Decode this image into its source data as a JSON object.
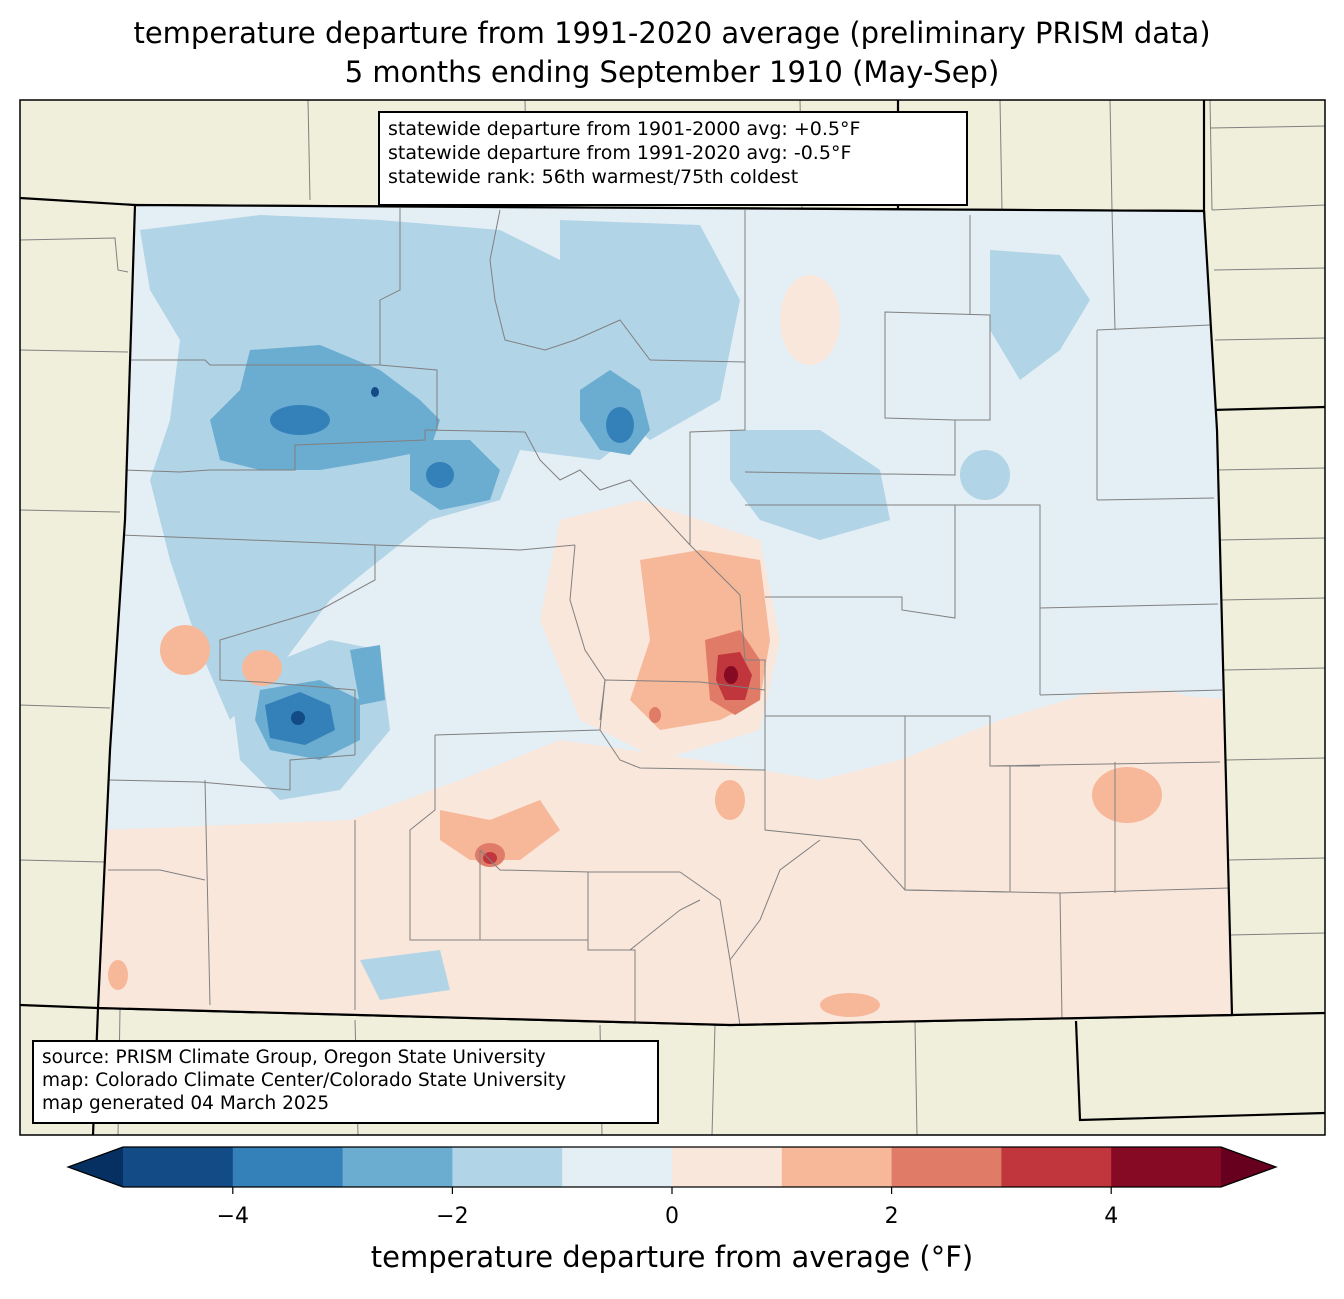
{
  "title": {
    "line1": "temperature departure from 1991-2020 average (preliminary PRISM data)",
    "line2": "5 months ending September 1910 (May-Sep)"
  },
  "stats": {
    "line1": "statewide departure from 1901-2000 avg: +0.5°F",
    "line2": "statewide departure from 1991-2020 avg: -0.5°F",
    "line3": "statewide rank: 56th warmest/75th coldest"
  },
  "source": {
    "line1": "source: PRISM Climate Group, Oregon State University",
    "line2": "map: Colorado Climate Center/Colorado State University",
    "line3": "map generated 04 March 2025"
  },
  "colorbar": {
    "label": "temperature departure from average (°F)",
    "min": -5,
    "max": 5,
    "bins": [
      {
        "from": -5,
        "to": -4,
        "color": "#134b87"
      },
      {
        "from": -4,
        "to": -3,
        "color": "#3480b9"
      },
      {
        "from": -3,
        "to": -2,
        "color": "#6bacd1"
      },
      {
        "from": -2,
        "to": -1,
        "color": "#b1d4e7"
      },
      {
        "from": -1,
        "to": 0,
        "color": "#e4eef5"
      },
      {
        "from": 0,
        "to": 1,
        "color": "#fae7dc"
      },
      {
        "from": 1,
        "to": 2,
        "color": "#f7b799"
      },
      {
        "from": 2,
        "to": 3,
        "color": "#e07b67"
      },
      {
        "from": 3,
        "to": 4,
        "color": "#c0363c"
      },
      {
        "from": 4,
        "to": 5,
        "color": "#870a24"
      }
    ],
    "under_color": "#053061",
    "over_color": "#67001f",
    "ticks": [
      {
        "value": -4,
        "label": "−4"
      },
      {
        "value": -2,
        "label": "−2"
      },
      {
        "value": 0,
        "label": "0"
      },
      {
        "value": 2,
        "label": "2"
      },
      {
        "value": 4,
        "label": "4"
      }
    ]
  },
  "colors": {
    "land_outside": "#f0efdc",
    "county_lines": "#808080",
    "state_lines": "#000000"
  }
}
